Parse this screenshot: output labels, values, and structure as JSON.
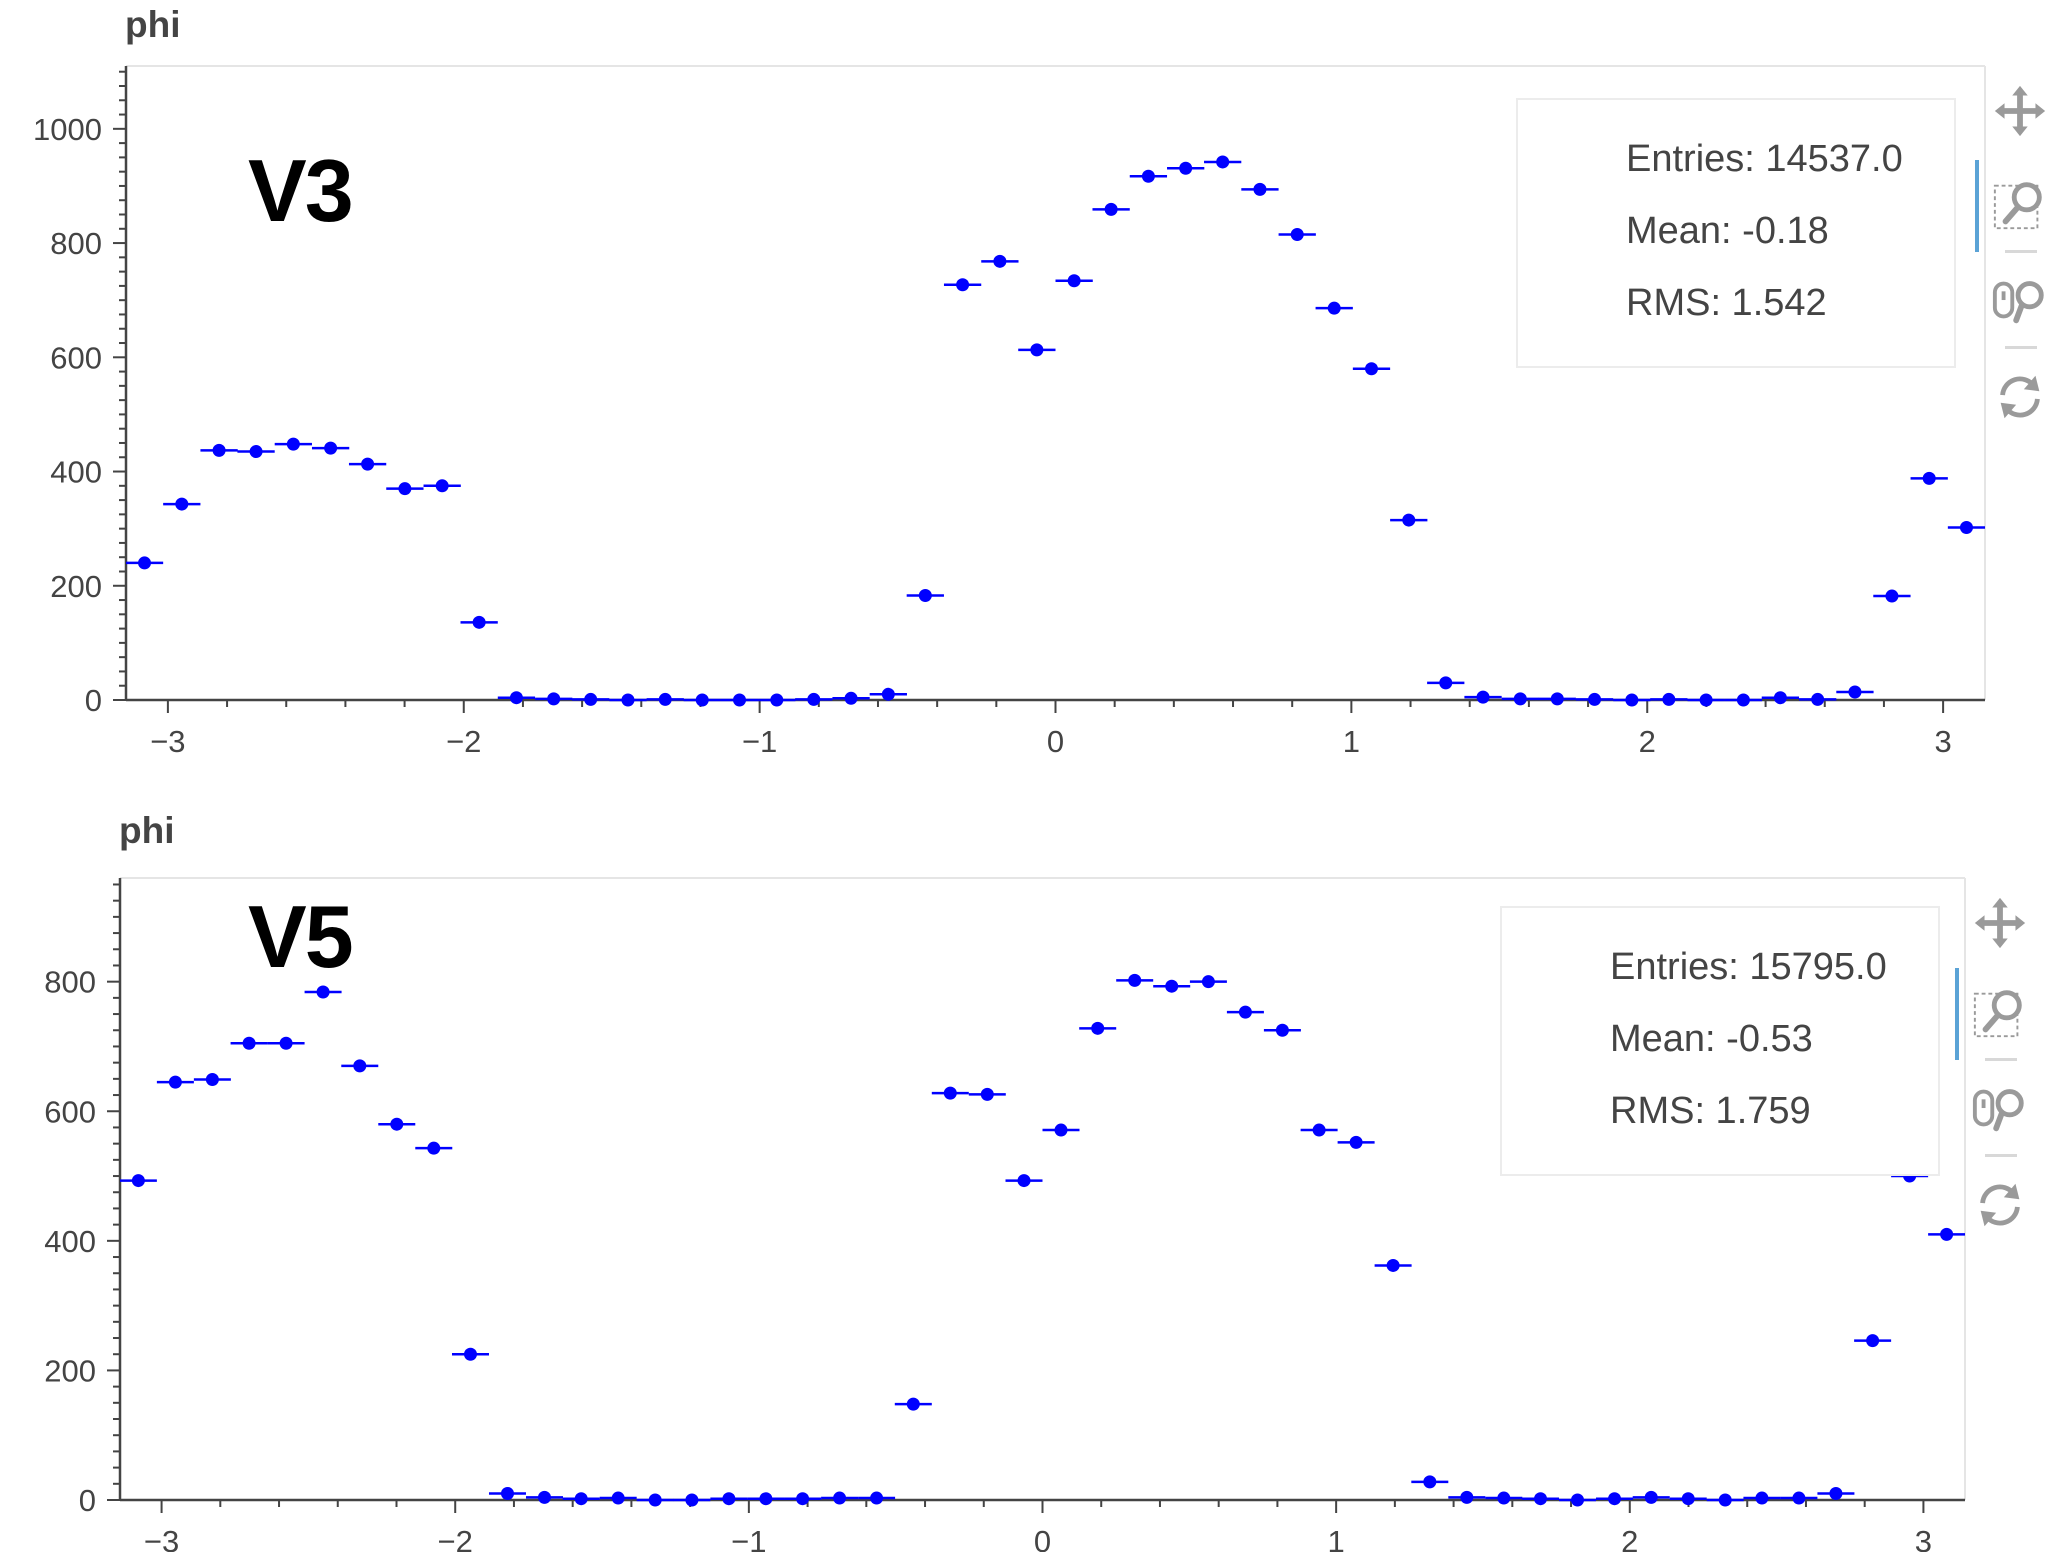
{
  "colors": {
    "marker": "#0000ff",
    "axis": "#444444",
    "frame": "#e5e5e5",
    "toolbar_icon": "#9a9a9a",
    "active_tool": "#5ba3d6"
  },
  "toolbar": {
    "tools": [
      {
        "name": "pan",
        "icon": "move-arrows-icon"
      },
      {
        "name": "box-zoom",
        "icon": "magnifier-box-icon",
        "active": true
      },
      {
        "name": "wheel-zoom",
        "icon": "wheel-zoom-icon"
      },
      {
        "name": "reset",
        "icon": "reset-icon"
      }
    ]
  },
  "chart_data": [
    {
      "type": "scatter",
      "title": "phi",
      "label": "V3",
      "xlim": [
        -3.14159,
        3.14159
      ],
      "ylim": [
        0,
        1110
      ],
      "x_ticks": [
        "−3",
        "−2",
        "−1",
        "0",
        "1",
        "2",
        "3"
      ],
      "y_ticks": [
        "0",
        "200",
        "400",
        "600",
        "800",
        "1000"
      ],
      "stats": {
        "entries": "Entries: 14537.0",
        "mean": "Mean: -0.18",
        "rms": "RMS: 1.542"
      },
      "series": [
        {
          "marker": "circle-with-xerror",
          "x": [
            -3.079,
            -2.953,
            -2.827,
            -2.702,
            -2.576,
            -2.45,
            -2.325,
            -2.199,
            -2.073,
            -1.948,
            -1.822,
            -1.696,
            -1.571,
            -1.445,
            -1.319,
            -1.194,
            -1.068,
            -0.942,
            -0.817,
            -0.691,
            -0.565,
            -0.44,
            -0.314,
            -0.188,
            -0.063,
            0.063,
            0.188,
            0.314,
            0.44,
            0.565,
            0.691,
            0.817,
            0.942,
            1.068,
            1.194,
            1.319,
            1.445,
            1.571,
            1.696,
            1.822,
            1.948,
            2.073,
            2.199,
            2.325,
            2.45,
            2.576,
            2.702,
            2.827,
            2.953,
            3.079
          ],
          "y": [
            240,
            343,
            437,
            435,
            448,
            441,
            413,
            370,
            375,
            136,
            4,
            2,
            1,
            0,
            1,
            0,
            0,
            0,
            1,
            3,
            10,
            183,
            727,
            768,
            613,
            734,
            859,
            917,
            931,
            942,
            894,
            815,
            686,
            580,
            315,
            30,
            5,
            2,
            2,
            1,
            0,
            1,
            0,
            0,
            4,
            1,
            14,
            182,
            388,
            302
          ]
        }
      ]
    },
    {
      "type": "scatter",
      "title": "phi",
      "label": "V5",
      "xlim": [
        -3.14159,
        3.14159
      ],
      "ylim": [
        0,
        960
      ],
      "x_ticks": [
        "−3",
        "−2",
        "−1",
        "0",
        "1",
        "2",
        "3"
      ],
      "y_ticks": [
        "0",
        "200",
        "400",
        "600",
        "800"
      ],
      "stats": {
        "entries": "Entries: 15795.0",
        "mean": "Mean: -0.53",
        "rms": "RMS: 1.759"
      },
      "series": [
        {
          "marker": "circle-with-xerror",
          "x": [
            -3.079,
            -2.953,
            -2.827,
            -2.702,
            -2.576,
            -2.45,
            -2.325,
            -2.199,
            -2.073,
            -1.948,
            -1.822,
            -1.696,
            -1.571,
            -1.445,
            -1.319,
            -1.194,
            -1.068,
            -0.942,
            -0.817,
            -0.691,
            -0.565,
            -0.44,
            -0.314,
            -0.188,
            -0.063,
            0.063,
            0.188,
            0.314,
            0.44,
            0.565,
            0.691,
            0.817,
            0.942,
            1.068,
            1.194,
            1.319,
            1.445,
            1.571,
            1.696,
            1.822,
            1.948,
            2.073,
            2.199,
            2.325,
            2.45,
            2.576,
            2.702,
            2.827,
            2.953,
            3.079
          ],
          "y": [
            493,
            645,
            649,
            705,
            705,
            784,
            670,
            580,
            543,
            225,
            10,
            4,
            2,
            3,
            0,
            0,
            2,
            2,
            2,
            3,
            3,
            148,
            628,
            626,
            493,
            571,
            728,
            802,
            793,
            800,
            753,
            725,
            571,
            552,
            362,
            28,
            4,
            3,
            2,
            0,
            2,
            4,
            2,
            0,
            3,
            3,
            10,
            246,
            500,
            410
          ]
        }
      ]
    }
  ]
}
